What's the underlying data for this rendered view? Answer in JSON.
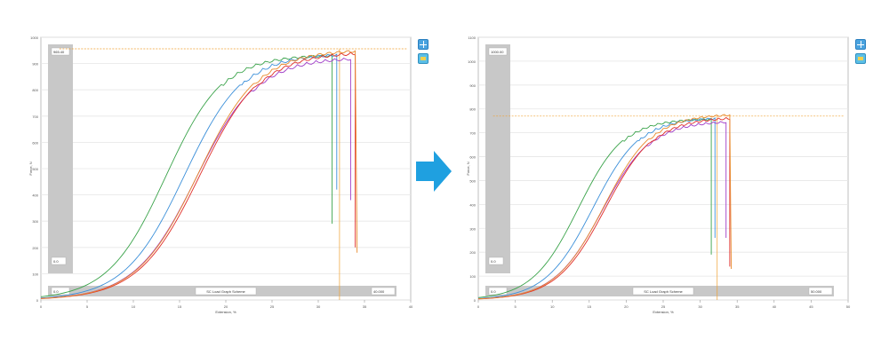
{
  "panels": [
    {
      "id": "before",
      "top_left_value": "965.40",
      "bottom_left_value": "0.0",
      "xbar_left": "0.0",
      "xbar_title": "SC Load Graph Scheme",
      "xbar_right": "40.000",
      "ylabel": "Force, N",
      "xlabel": "Extension, %",
      "ref_y": 956,
      "ref_x": 32.3,
      "chart_data": {
        "type": "line",
        "xlim": [
          0,
          40
        ],
        "ylim": [
          0,
          1000
        ],
        "xticks": [
          0,
          5,
          10,
          15,
          20,
          25,
          30,
          35,
          40
        ],
        "yticks": [
          0,
          100,
          200,
          300,
          400,
          500,
          600,
          700,
          800,
          900,
          1000
        ],
        "ytick_labels": [
          "0",
          "100",
          "200",
          "300",
          "400",
          "500",
          "600",
          "700",
          "800",
          "900",
          "1000"
        ],
        "series": [
          {
            "color": "#3aa34a",
            "mid": 13.5,
            "k": 0.32,
            "max": 940,
            "xe": 31.5,
            "drop": 290
          },
          {
            "color": "#3b8fd9",
            "mid": 15.5,
            "k": 0.31,
            "max": 945,
            "xe": 32.0,
            "drop": 420
          },
          {
            "color": "#a03cc8",
            "mid": 16.8,
            "k": 0.3,
            "max": 930,
            "xe": 33.5,
            "drop": 380
          },
          {
            "color": "#e0302a",
            "mid": 17.2,
            "k": 0.3,
            "max": 950,
            "xe": 34.0,
            "drop": 200
          },
          {
            "color": "#e88a2a",
            "mid": 17.0,
            "k": 0.3,
            "max": 960,
            "xe": 34.2,
            "drop": 180
          }
        ]
      }
    },
    {
      "id": "after",
      "top_left_value": "1000.00",
      "bottom_left_value": "0.0",
      "xbar_left": "0.0",
      "xbar_title": "SC Load Graph Scheme",
      "xbar_right": "50.000",
      "ylabel": "Force, N",
      "xlabel": "Extension, %",
      "ref_y": 770,
      "ref_x": 32.3,
      "chart_data": {
        "type": "line",
        "xlim": [
          0,
          50
        ],
        "ylim": [
          0,
          1100
        ],
        "xticks": [
          0,
          5,
          10,
          15,
          20,
          25,
          30,
          35,
          40,
          45,
          50
        ],
        "yticks": [
          0,
          100,
          200,
          300,
          400,
          500,
          600,
          700,
          800,
          900,
          1000,
          1100
        ],
        "ytick_labels": [
          "0",
          "100",
          "200",
          "300",
          "400",
          "500",
          "600",
          "700",
          "800",
          "900",
          "1000",
          "1100"
        ],
        "series": [
          {
            "color": "#3aa34a",
            "mid": 13.5,
            "k": 0.32,
            "max": 765,
            "xe": 31.5,
            "drop": 190
          },
          {
            "color": "#3b8fd9",
            "mid": 15.5,
            "k": 0.31,
            "max": 770,
            "xe": 32.0,
            "drop": 260
          },
          {
            "color": "#a03cc8",
            "mid": 16.8,
            "k": 0.3,
            "max": 755,
            "xe": 33.5,
            "drop": 260
          },
          {
            "color": "#e0302a",
            "mid": 17.2,
            "k": 0.3,
            "max": 770,
            "xe": 34.0,
            "drop": 140
          },
          {
            "color": "#e88a2a",
            "mid": 17.0,
            "k": 0.3,
            "max": 785,
            "xe": 34.2,
            "drop": 130
          }
        ]
      }
    }
  ],
  "arrow_color": "#1fa0e0",
  "toolbar": {
    "grid_icon": "grid-icon",
    "image_icon": "image-icon"
  }
}
